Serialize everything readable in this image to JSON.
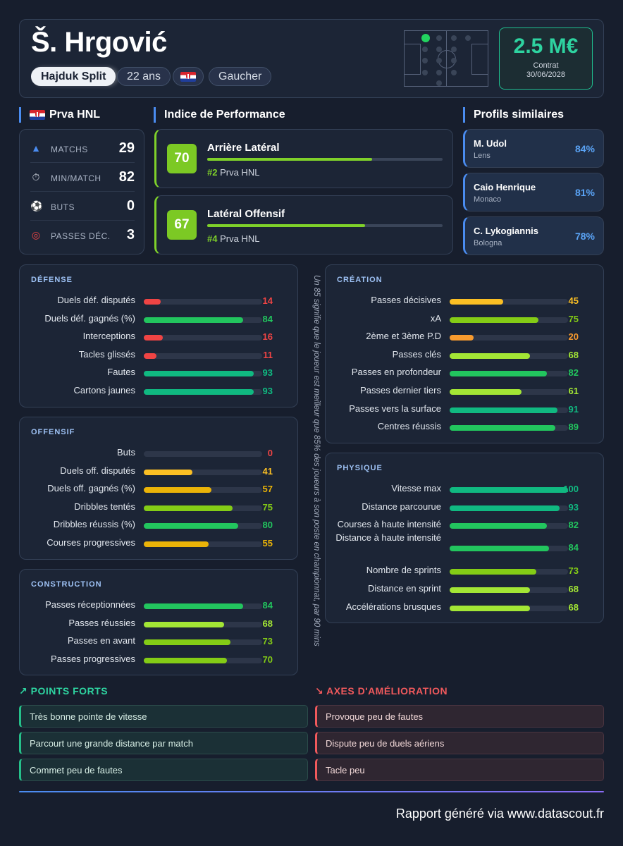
{
  "header": {
    "player_name": "Š. Hrgović",
    "club": "Hajduk Split",
    "age": "22 ans",
    "nationality_flag": "croatia-flag-icon",
    "foot": "Gaucher",
    "contract_value": "2.5 M€",
    "contract_label": "Contrat",
    "contract_date": "30/06/2028"
  },
  "league": {
    "title": "Prva HNL",
    "stats": [
      {
        "icon": "boot-icon",
        "label": "MATCHS",
        "value": "29"
      },
      {
        "icon": "stopwatch-icon",
        "label": "MIN/MATCH",
        "value": "82"
      },
      {
        "icon": "ball-icon",
        "label": "BUTS",
        "value": "0"
      },
      {
        "icon": "target-icon",
        "label": "PASSES DÉC.",
        "value": "3"
      }
    ]
  },
  "performance": {
    "title": "Indice de Performance",
    "roles": [
      {
        "score": "70",
        "role": "Arrière Latéral",
        "rank": "#2",
        "league": "Prva HNL",
        "fill": 0.7
      },
      {
        "score": "67",
        "role": "Latéral Offensif",
        "rank": "#4",
        "league": "Prva HNL",
        "fill": 0.67
      }
    ]
  },
  "similar": {
    "title": "Profils similaires",
    "profiles": [
      {
        "name": "M. Udol",
        "club": "Lens",
        "pct": "84%"
      },
      {
        "name": "Caio Henrique",
        "club": "Monaco",
        "pct": "81%"
      },
      {
        "name": "C. Lykogiannis",
        "club": "Bologna",
        "pct": "78%"
      }
    ]
  },
  "note": "Un 85 signifie que le joueur est meilleur que 85% des joueurs à son poste en championnat, par 90 mins",
  "colors": {
    "red": "#ef4444",
    "orange": "#f79a2e",
    "yellow": "#fbbf24",
    "amber": "#eab308",
    "lime": "#a3e635",
    "green_lime": "#84cc16",
    "green": "#22c55e",
    "teal": "#10b981",
    "accent_blue": "#4a8cf0"
  },
  "panels": {
    "defense": {
      "title": "DÉFENSE",
      "metrics": [
        {
          "label": "Duels déf. disputés",
          "value": 14,
          "color": "#ef4444"
        },
        {
          "label": "Duels déf. gagnés (%)",
          "value": 84,
          "color": "#22c55e"
        },
        {
          "label": "Interceptions",
          "value": 16,
          "color": "#ef4444"
        },
        {
          "label": "Tacles glissés",
          "value": 11,
          "color": "#ef4444"
        },
        {
          "label": "Fautes",
          "value": 93,
          "color": "#10b981"
        },
        {
          "label": "Cartons jaunes",
          "value": 93,
          "color": "#10b981"
        }
      ]
    },
    "offensive": {
      "title": "OFFENSIF",
      "metrics": [
        {
          "label": "Buts",
          "value": 0,
          "color": "#ef4444"
        },
        {
          "label": "Duels off. disputés",
          "value": 41,
          "color": "#fbbf24"
        },
        {
          "label": "Duels off. gagnés (%)",
          "value": 57,
          "color": "#eab308"
        },
        {
          "label": "Dribbles tentés",
          "value": 75,
          "color": "#84cc16"
        },
        {
          "label": "Dribbles réussis (%)",
          "value": 80,
          "color": "#22c55e"
        },
        {
          "label": "Courses progressives",
          "value": 55,
          "color": "#eab308"
        }
      ]
    },
    "construction": {
      "title": "CONSTRUCTION",
      "metrics": [
        {
          "label": "Passes réceptionnées",
          "value": 84,
          "color": "#22c55e"
        },
        {
          "label": "Passes réussies",
          "value": 68,
          "color": "#a3e635"
        },
        {
          "label": "Passes en avant",
          "value": 73,
          "color": "#84cc16"
        },
        {
          "label": "Passes progressives",
          "value": 70,
          "color": "#84cc16"
        }
      ]
    },
    "creation": {
      "title": "CRÉATION",
      "metrics": [
        {
          "label": "Passes décisives",
          "value": 45,
          "color": "#fbbf24"
        },
        {
          "label": "xA",
          "value": 75,
          "color": "#84cc16"
        },
        {
          "label": "2ème et 3ème P.D",
          "value": 20,
          "color": "#f79a2e"
        },
        {
          "label": "Passes clés",
          "value": 68,
          "color": "#a3e635"
        },
        {
          "label": "Passes en profondeur",
          "value": 82,
          "color": "#22c55e"
        },
        {
          "label": "Passes dernier tiers",
          "value": 61,
          "color": "#a3e635"
        },
        {
          "label": "Passes vers la surface",
          "value": 91,
          "color": "#10b981"
        },
        {
          "label": "Centres réussis",
          "value": 89,
          "color": "#22c55e"
        }
      ]
    },
    "physical": {
      "title": "PHYSIQUE",
      "metrics": [
        {
          "label": "Vitesse max",
          "value": 100,
          "color": "#10b981"
        },
        {
          "label": "Distance parcourue",
          "value": 93,
          "color": "#10b981"
        },
        {
          "label": "Courses à haute intensité",
          "value": 82,
          "color": "#22c55e"
        },
        {
          "label": "Distance à haute intensité",
          "value": 84,
          "color": "#22c55e"
        },
        {
          "label": "Nombre de sprints",
          "value": 73,
          "color": "#84cc16"
        },
        {
          "label": "Distance en sprint",
          "value": 68,
          "color": "#a3e635"
        },
        {
          "label": "Accélérations brusques",
          "value": 68,
          "color": "#a3e635"
        }
      ]
    }
  },
  "strengths": {
    "title": "POINTS FORTS",
    "items": [
      "Très bonne pointe de vitesse",
      "Parcourt une grande distance par match",
      "Commet peu de fautes"
    ]
  },
  "weaknesses": {
    "title": "AXES D'AMÉLIORATION",
    "items": [
      "Provoque peu de fautes",
      "Dispute peu de duels aériens",
      "Tacle peu"
    ]
  },
  "footer": "Rapport généré via www.datascout.fr"
}
